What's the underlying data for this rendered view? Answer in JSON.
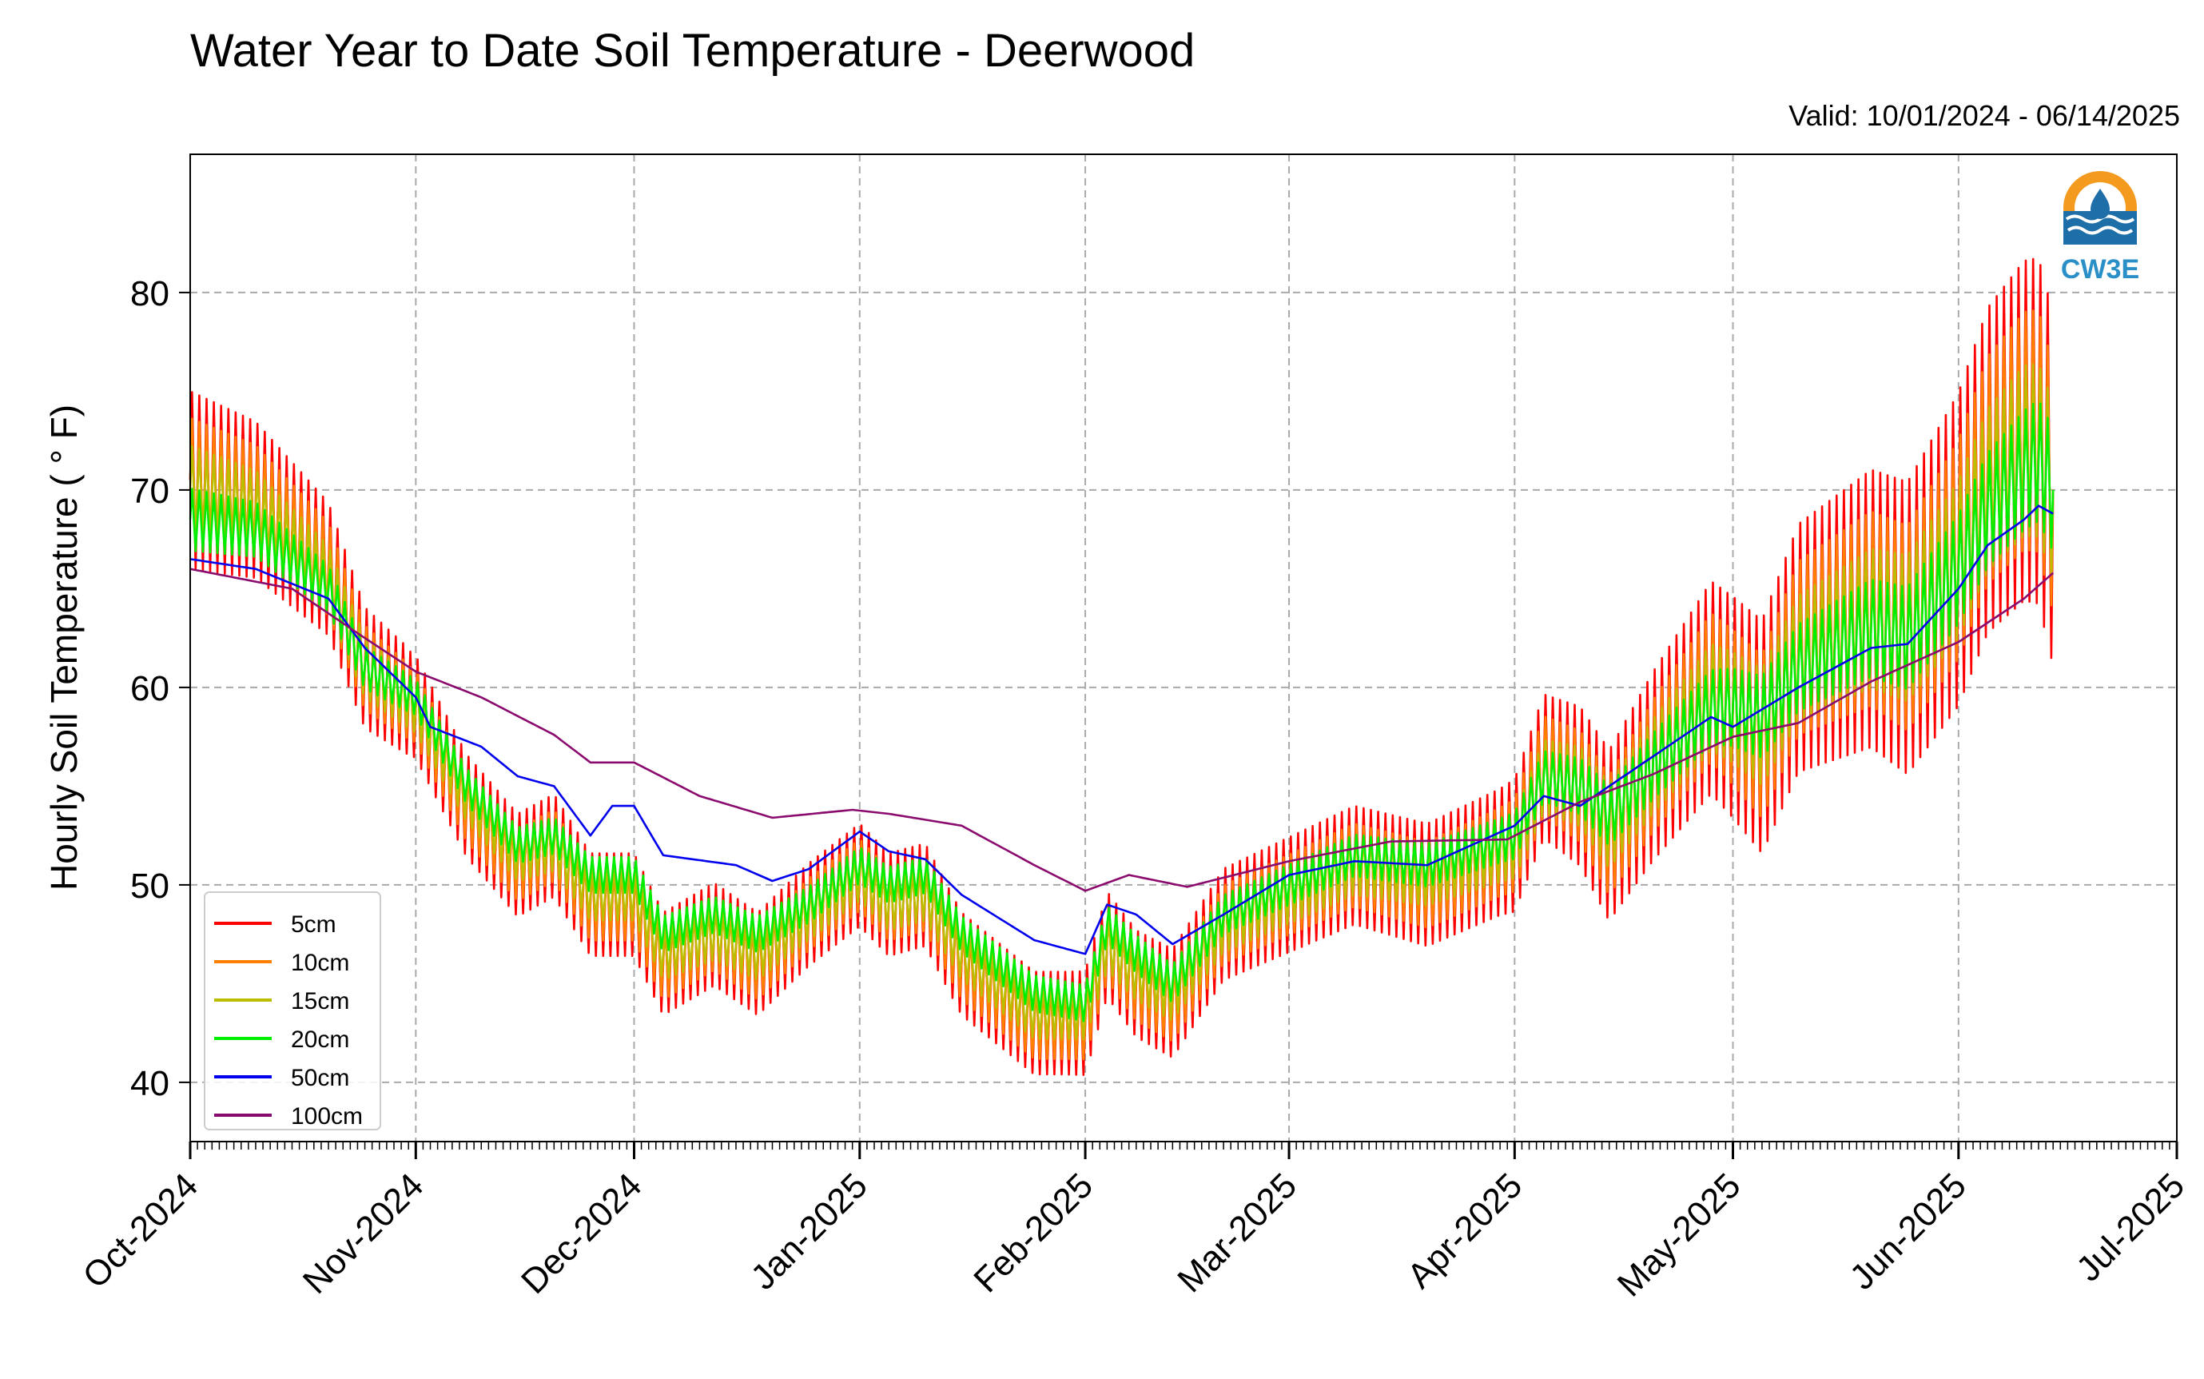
{
  "title": "Water Year to Date Soil Temperature - Deerwood",
  "subtitle": "Valid: 10/01/2024 - 06/14/2025",
  "logo": {
    "text": "CW3E",
    "colors": {
      "ring": "#f39a1f",
      "water": "#1e6fa8",
      "text": "#2a8fc7"
    }
  },
  "chart_data": {
    "type": "line",
    "title": "Water Year to Date Soil Temperature - Deerwood",
    "ylabel": "Hourly Soil Temperature ( ° F)",
    "xlabel": "",
    "xlim": [
      "2024-10-01",
      "2025-07-01"
    ],
    "ylim": [
      37,
      87
    ],
    "yticks": [
      40,
      50,
      60,
      70,
      80
    ],
    "xticks": [
      {
        "date": "2024-10-01",
        "label": "Oct-2024"
      },
      {
        "date": "2024-11-01",
        "label": "Nov-2024"
      },
      {
        "date": "2024-12-01",
        "label": "Dec-2024"
      },
      {
        "date": "2025-01-01",
        "label": "Jan-2025"
      },
      {
        "date": "2025-02-01",
        "label": "Feb-2025"
      },
      {
        "date": "2025-03-01",
        "label": "Mar-2025"
      },
      {
        "date": "2025-04-01",
        "label": "Apr-2025"
      },
      {
        "date": "2025-05-01",
        "label": "May-2025"
      },
      {
        "date": "2025-06-01",
        "label": "Jun-2025"
      },
      {
        "date": "2025-07-01",
        "label": "Jul-2025"
      }
    ],
    "grid": true,
    "legend_position": "lower-left",
    "series": [
      {
        "name": "5cm",
        "color": "#ff0000",
        "amplitude": 1.0,
        "mean": [
          [
            "2024-10-01",
            70.5
          ],
          [
            "2024-10-10",
            69.5
          ],
          [
            "2024-10-20",
            66
          ],
          [
            "2024-10-25",
            61
          ],
          [
            "2024-11-01",
            59
          ],
          [
            "2024-11-08",
            54
          ],
          [
            "2024-11-15",
            51
          ],
          [
            "2024-11-20",
            52
          ],
          [
            "2024-11-25",
            49
          ],
          [
            "2024-12-01",
            49
          ],
          [
            "2024-12-05",
            46
          ],
          [
            "2024-12-12",
            47.5
          ],
          [
            "2024-12-18",
            46
          ],
          [
            "2024-12-25",
            48.5
          ],
          [
            "2025-01-01",
            50.5
          ],
          [
            "2025-01-05",
            49
          ],
          [
            "2025-01-10",
            49.5
          ],
          [
            "2025-01-15",
            46
          ],
          [
            "2025-01-25",
            43
          ],
          [
            "2025-02-01",
            43
          ],
          [
            "2025-02-04",
            47
          ],
          [
            "2025-02-08",
            45
          ],
          [
            "2025-02-13",
            44
          ],
          [
            "2025-02-20",
            48
          ],
          [
            "2025-03-01",
            49.5
          ],
          [
            "2025-03-10",
            51
          ],
          [
            "2025-03-20",
            50
          ],
          [
            "2025-04-01",
            52
          ],
          [
            "2025-04-05",
            56
          ],
          [
            "2025-04-10",
            55
          ],
          [
            "2025-04-14",
            52.5
          ],
          [
            "2025-04-20",
            56
          ],
          [
            "2025-04-28",
            60
          ],
          [
            "2025-05-01",
            59
          ],
          [
            "2025-05-05",
            57.5
          ],
          [
            "2025-05-10",
            62
          ],
          [
            "2025-05-20",
            64
          ],
          [
            "2025-05-25",
            63
          ],
          [
            "2025-06-01",
            67
          ],
          [
            "2025-06-05",
            71
          ],
          [
            "2025-06-10",
            73
          ],
          [
            "2025-06-12",
            73
          ],
          [
            "2025-06-14",
            70
          ]
        ]
      },
      {
        "name": "10cm",
        "color": "#ff7f00",
        "amplitude": 0.7,
        "mean": [
          [
            "2024-10-01",
            70.5
          ],
          [
            "2024-10-10",
            69.5
          ],
          [
            "2024-10-20",
            66
          ],
          [
            "2024-10-25",
            61
          ],
          [
            "2024-11-01",
            59
          ],
          [
            "2024-11-08",
            54
          ],
          [
            "2024-11-15",
            51
          ],
          [
            "2024-11-20",
            52
          ],
          [
            "2024-11-25",
            49
          ],
          [
            "2024-12-01",
            49
          ],
          [
            "2024-12-05",
            46
          ],
          [
            "2024-12-12",
            47.5
          ],
          [
            "2024-12-18",
            46
          ],
          [
            "2024-12-25",
            48.5
          ],
          [
            "2025-01-01",
            50.5
          ],
          [
            "2025-01-05",
            49
          ],
          [
            "2025-01-10",
            49.5
          ],
          [
            "2025-01-15",
            46
          ],
          [
            "2025-01-25",
            43
          ],
          [
            "2025-02-01",
            43
          ],
          [
            "2025-02-04",
            47
          ],
          [
            "2025-02-08",
            45
          ],
          [
            "2025-02-13",
            44
          ],
          [
            "2025-02-20",
            48
          ],
          [
            "2025-03-01",
            49.5
          ],
          [
            "2025-03-10",
            51
          ],
          [
            "2025-03-20",
            50
          ],
          [
            "2025-04-01",
            52
          ],
          [
            "2025-04-05",
            56
          ],
          [
            "2025-04-10",
            55
          ],
          [
            "2025-04-14",
            52.5
          ],
          [
            "2025-04-20",
            56
          ],
          [
            "2025-04-28",
            60
          ],
          [
            "2025-05-01",
            59
          ],
          [
            "2025-05-05",
            57.5
          ],
          [
            "2025-05-10",
            62
          ],
          [
            "2025-05-20",
            64
          ],
          [
            "2025-05-25",
            63
          ],
          [
            "2025-06-01",
            67
          ],
          [
            "2025-06-05",
            71
          ],
          [
            "2025-06-10",
            73
          ],
          [
            "2025-06-12",
            73
          ],
          [
            "2025-06-14",
            70
          ]
        ]
      },
      {
        "name": "15cm",
        "color": "#bdbd00",
        "amplitude": 0.5,
        "mean": [
          [
            "2024-10-01",
            70
          ],
          [
            "2024-10-10",
            69
          ],
          [
            "2024-10-20",
            65.5
          ],
          [
            "2024-10-25",
            61
          ],
          [
            "2024-11-01",
            59
          ],
          [
            "2024-11-08",
            54.5
          ],
          [
            "2024-11-15",
            51.5
          ],
          [
            "2024-11-20",
            52
          ],
          [
            "2024-11-25",
            49.5
          ],
          [
            "2024-12-01",
            49.5
          ],
          [
            "2024-12-05",
            46.5
          ],
          [
            "2024-12-12",
            47.5
          ],
          [
            "2024-12-18",
            46.5
          ],
          [
            "2024-12-25",
            48.5
          ],
          [
            "2025-01-01",
            50.5
          ],
          [
            "2025-01-05",
            49
          ],
          [
            "2025-01-10",
            49.5
          ],
          [
            "2025-01-15",
            46.5
          ],
          [
            "2025-01-25",
            43.5
          ],
          [
            "2025-02-01",
            43.5
          ],
          [
            "2025-02-04",
            47
          ],
          [
            "2025-02-08",
            45.5
          ],
          [
            "2025-02-13",
            44.5
          ],
          [
            "2025-02-20",
            48
          ],
          [
            "2025-03-01",
            49.5
          ],
          [
            "2025-03-10",
            51
          ],
          [
            "2025-03-20",
            50.5
          ],
          [
            "2025-04-01",
            52
          ],
          [
            "2025-04-05",
            55.5
          ],
          [
            "2025-04-10",
            55
          ],
          [
            "2025-04-14",
            53
          ],
          [
            "2025-04-20",
            56
          ],
          [
            "2025-04-28",
            59.5
          ],
          [
            "2025-05-01",
            59
          ],
          [
            "2025-05-05",
            58
          ],
          [
            "2025-05-10",
            61.5
          ],
          [
            "2025-05-20",
            63.5
          ],
          [
            "2025-05-25",
            63
          ],
          [
            "2025-06-01",
            66.5
          ],
          [
            "2025-06-05",
            70
          ],
          [
            "2025-06-10",
            72
          ],
          [
            "2025-06-12",
            72
          ],
          [
            "2025-06-14",
            70
          ]
        ]
      },
      {
        "name": "20cm",
        "color": "#00ee00",
        "amplitude": 0.35,
        "mean": [
          [
            "2024-10-01",
            68.5
          ],
          [
            "2024-10-10",
            68
          ],
          [
            "2024-10-20",
            65
          ],
          [
            "2024-10-25",
            61
          ],
          [
            "2024-11-01",
            59.5
          ],
          [
            "2024-11-08",
            55
          ],
          [
            "2024-11-15",
            52
          ],
          [
            "2024-11-20",
            52.5
          ],
          [
            "2024-11-25",
            50.5
          ],
          [
            "2024-12-01",
            50.5
          ],
          [
            "2024-12-05",
            47.5
          ],
          [
            "2024-12-12",
            48.5
          ],
          [
            "2024-12-18",
            47.5
          ],
          [
            "2024-12-25",
            49
          ],
          [
            "2025-01-01",
            51
          ],
          [
            "2025-01-05",
            50
          ],
          [
            "2025-01-10",
            50.5
          ],
          [
            "2025-01-15",
            47.5
          ],
          [
            "2025-01-25",
            44.5
          ],
          [
            "2025-02-01",
            44
          ],
          [
            "2025-02-04",
            48
          ],
          [
            "2025-02-08",
            46.5
          ],
          [
            "2025-02-13",
            45
          ],
          [
            "2025-02-20",
            48.5
          ],
          [
            "2025-03-01",
            50
          ],
          [
            "2025-03-10",
            51.5
          ],
          [
            "2025-03-20",
            51
          ],
          [
            "2025-04-01",
            52.5
          ],
          [
            "2025-04-05",
            55.5
          ],
          [
            "2025-04-10",
            55
          ],
          [
            "2025-04-14",
            53.5
          ],
          [
            "2025-04-20",
            56
          ],
          [
            "2025-04-28",
            59
          ],
          [
            "2025-05-01",
            59
          ],
          [
            "2025-05-05",
            58.5
          ],
          [
            "2025-05-10",
            61
          ],
          [
            "2025-05-20",
            63
          ],
          [
            "2025-05-25",
            62.5
          ],
          [
            "2025-06-01",
            66
          ],
          [
            "2025-06-05",
            69
          ],
          [
            "2025-06-10",
            71
          ],
          [
            "2025-06-12",
            71.5
          ],
          [
            "2025-06-14",
            70
          ]
        ]
      },
      {
        "name": "50cm",
        "color": "#0000ee",
        "amplitude": 0.0,
        "mean": [
          [
            "2024-10-01",
            66.5
          ],
          [
            "2024-10-10",
            66
          ],
          [
            "2024-10-20",
            64.5
          ],
          [
            "2024-10-25",
            62
          ],
          [
            "2024-11-01",
            59.5
          ],
          [
            "2024-11-03",
            58
          ],
          [
            "2024-11-10",
            57
          ],
          [
            "2024-11-15",
            55.5
          ],
          [
            "2024-11-20",
            55
          ],
          [
            "2024-11-25",
            52.5
          ],
          [
            "2024-11-28",
            54
          ],
          [
            "2024-12-01",
            54
          ],
          [
            "2024-12-05",
            51.5
          ],
          [
            "2024-12-15",
            51
          ],
          [
            "2024-12-20",
            50.2
          ],
          [
            "2024-12-25",
            50.8
          ],
          [
            "2025-01-01",
            52.7
          ],
          [
            "2025-01-05",
            51.7
          ],
          [
            "2025-01-10",
            51.3
          ],
          [
            "2025-01-15",
            49.5
          ],
          [
            "2025-01-25",
            47.2
          ],
          [
            "2025-02-01",
            46.5
          ],
          [
            "2025-02-04",
            49
          ],
          [
            "2025-02-08",
            48.5
          ],
          [
            "2025-02-13",
            47
          ],
          [
            "2025-02-20",
            48.5
          ],
          [
            "2025-03-01",
            50.5
          ],
          [
            "2025-03-10",
            51.2
          ],
          [
            "2025-03-20",
            51
          ],
          [
            "2025-04-01",
            53
          ],
          [
            "2025-04-05",
            54.5
          ],
          [
            "2025-04-10",
            54
          ],
          [
            "2025-04-20",
            56.5
          ],
          [
            "2025-04-28",
            58.5
          ],
          [
            "2025-05-01",
            58
          ],
          [
            "2025-05-10",
            60
          ],
          [
            "2025-05-20",
            62
          ],
          [
            "2025-05-25",
            62.2
          ],
          [
            "2025-06-01",
            65
          ],
          [
            "2025-06-05",
            67.2
          ],
          [
            "2025-06-10",
            68.5
          ],
          [
            "2025-06-12",
            69.2
          ],
          [
            "2025-06-14",
            68.8
          ]
        ]
      },
      {
        "name": "100cm",
        "color": "#8b0a6e",
        "amplitude": 0.0,
        "mean": [
          [
            "2024-10-01",
            66
          ],
          [
            "2024-10-15",
            65
          ],
          [
            "2024-10-25",
            62.5
          ],
          [
            "2024-11-01",
            60.8
          ],
          [
            "2024-11-10",
            59.5
          ],
          [
            "2024-11-20",
            57.6
          ],
          [
            "2024-11-25",
            56.2
          ],
          [
            "2024-12-01",
            56.2
          ],
          [
            "2024-12-10",
            54.5
          ],
          [
            "2024-12-20",
            53.4
          ],
          [
            "2024-12-31",
            53.8
          ],
          [
            "2025-01-05",
            53.6
          ],
          [
            "2025-01-15",
            53
          ],
          [
            "2025-01-25",
            51
          ],
          [
            "2025-02-01",
            49.7
          ],
          [
            "2025-02-07",
            50.5
          ],
          [
            "2025-02-15",
            49.9
          ],
          [
            "2025-03-01",
            51.2
          ],
          [
            "2025-03-15",
            52.2
          ],
          [
            "2025-03-31",
            52.3
          ],
          [
            "2025-04-10",
            54.2
          ],
          [
            "2025-04-20",
            55.6
          ],
          [
            "2025-05-01",
            57.5
          ],
          [
            "2025-05-10",
            58.2
          ],
          [
            "2025-05-20",
            60.3
          ],
          [
            "2025-06-01",
            62.3
          ],
          [
            "2025-06-10",
            64.5
          ],
          [
            "2025-06-14",
            65.8
          ]
        ]
      }
    ]
  }
}
